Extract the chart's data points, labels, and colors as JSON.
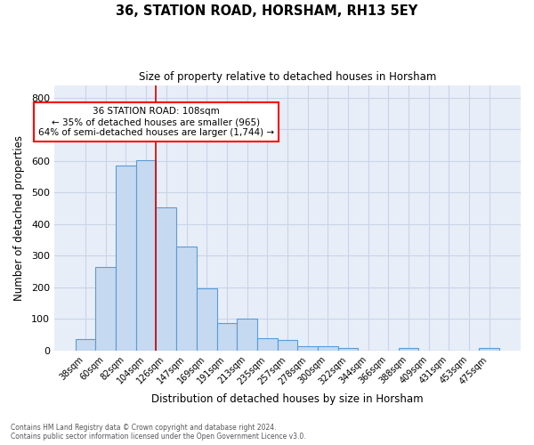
{
  "title": "36, STATION ROAD, HORSHAM, RH13 5EY",
  "subtitle": "Size of property relative to detached houses in Horsham",
  "xlabel": "Distribution of detached houses by size in Horsham",
  "ylabel": "Number of detached properties",
  "categories": [
    "38sqm",
    "60sqm",
    "82sqm",
    "104sqm",
    "126sqm",
    "147sqm",
    "169sqm",
    "191sqm",
    "213sqm",
    "235sqm",
    "257sqm",
    "278sqm",
    "300sqm",
    "322sqm",
    "344sqm",
    "366sqm",
    "388sqm",
    "409sqm",
    "431sqm",
    "453sqm",
    "475sqm"
  ],
  "values": [
    37,
    265,
    585,
    603,
    453,
    330,
    197,
    88,
    100,
    38,
    32,
    14,
    14,
    9,
    0,
    0,
    9,
    0,
    0,
    0,
    7
  ],
  "bar_color": "#c5d9f0",
  "bar_edge_color": "#5b9bd5",
  "vline_x": 3.5,
  "vline_color": "#cc0000",
  "annotation_line1": "36 STATION ROAD: 108sqm",
  "annotation_line2": "← 35% of detached houses are smaller (965)",
  "annotation_line3": "64% of semi-detached houses are larger (1,744) →",
  "annotation_box_facecolor": "white",
  "annotation_box_edgecolor": "red",
  "grid_color": "#c8d4e8",
  "bg_color": "#e8eef8",
  "ylim": [
    0,
    840
  ],
  "yticks": [
    0,
    100,
    200,
    300,
    400,
    500,
    600,
    700,
    800
  ],
  "footer_line1": "Contains HM Land Registry data © Crown copyright and database right 2024.",
  "footer_line2": "Contains public sector information licensed under the Open Government Licence v3.0."
}
